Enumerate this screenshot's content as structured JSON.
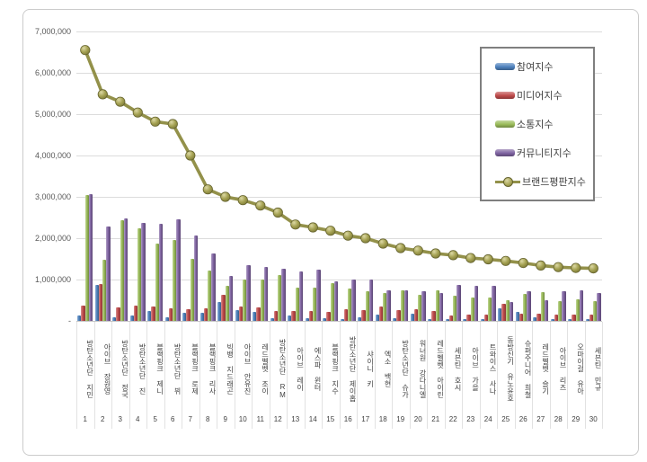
{
  "chart_data": {
    "type": "bar",
    "subtype": "grouped-bars-with-line-overlay",
    "title": "",
    "xlabel": "",
    "ylabel": "",
    "ylim": [
      0,
      7000000
    ],
    "ytick_interval": 1000000,
    "ytick_labels": [
      "-",
      "1,000,000",
      "2,000,000",
      "3,000,000",
      "4,000,000",
      "5,000,000",
      "6,000,000",
      "7,000,000"
    ],
    "grid": true,
    "legend_position": "inside-top-right",
    "categories": [
      "방탄소년단 지민",
      "아이브 장원영",
      "방탄소년단 정국",
      "방탄소년단 진",
      "블랙핑크 제니",
      "방탄소년단 뷔",
      "블랙핑크 로제",
      "블랙핑크 리사",
      "빅뱅 지드래곤",
      "아이브 안유진",
      "레드벨벳 조이",
      "방탄소년단 RM",
      "아이브 레이",
      "에스파 윈터",
      "블랙핑크 지수",
      "방탄소년단 제이홉",
      "샤이니 키",
      "엑소 백현",
      "방탄소년단 슈가",
      "워너원 강다니엘",
      "레드벨벳 아이린",
      "세븐틴 호시",
      "아이브 가을",
      "트와이스 사나",
      "동방신기 유노윤호",
      "슈퍼주니어 희철",
      "레드벨벳 슬기",
      "아이브 리즈",
      "오마이걸 유아",
      "세븐틴 민규"
    ],
    "rank_labels": [
      "1",
      "2",
      "3",
      "4",
      "5",
      "6",
      "7",
      "8",
      "9",
      "10",
      "11",
      "12",
      "13",
      "14",
      "15",
      "16",
      "17",
      "18",
      "19",
      "20",
      "21",
      "22",
      "23",
      "24",
      "25",
      "26",
      "27",
      "28",
      "29",
      "30"
    ],
    "series": [
      {
        "name": "참여지수",
        "type": "bar",
        "color": "#4e81bd",
        "values": [
          120000,
          870000,
          90000,
          120000,
          250000,
          80000,
          200000,
          190000,
          450000,
          270000,
          220000,
          70000,
          140000,
          70000,
          60000,
          50000,
          90000,
          160000,
          70000,
          180000,
          40000,
          40000,
          40000,
          50000,
          300000,
          210000,
          90000,
          40000,
          40000,
          40000
        ]
      },
      {
        "name": "미디어지수",
        "type": "bar",
        "color": "#bf4b4b",
        "values": [
          380000,
          890000,
          330000,
          370000,
          350000,
          310000,
          280000,
          300000,
          640000,
          350000,
          330000,
          230000,
          230000,
          230000,
          210000,
          280000,
          260000,
          340000,
          270000,
          290000,
          230000,
          120000,
          150000,
          160000,
          410000,
          170000,
          170000,
          150000,
          160000,
          150000
        ]
      },
      {
        "name": "소통지수",
        "type": "bar",
        "color": "#9abb59",
        "values": [
          3050000,
          1470000,
          2430000,
          2250000,
          1880000,
          1950000,
          1490000,
          1210000,
          840000,
          990000,
          1000000,
          1100000,
          810000,
          800000,
          920000,
          790000,
          710000,
          680000,
          740000,
          620000,
          750000,
          600000,
          570000,
          560000,
          490000,
          650000,
          700000,
          480000,
          520000,
          480000
        ]
      },
      {
        "name": "커뮤니티지수",
        "type": "bar",
        "color": "#7f63a1",
        "values": [
          3060000,
          2280000,
          2470000,
          2360000,
          2350000,
          2450000,
          2070000,
          1620000,
          1090000,
          1350000,
          1310000,
          1270000,
          1200000,
          1230000,
          950000,
          1010000,
          1000000,
          740000,
          750000,
          720000,
          680000,
          870000,
          850000,
          850000,
          460000,
          720000,
          490000,
          720000,
          730000,
          670000
        ]
      },
      {
        "name": "브랜드평판지수",
        "type": "line",
        "color": "#93914a",
        "marker_fill": "#a5a253",
        "marker_stroke": "#66642f",
        "values": [
          6550000,
          5480000,
          5300000,
          5040000,
          4820000,
          4760000,
          4000000,
          3180000,
          3000000,
          2920000,
          2790000,
          2620000,
          2330000,
          2260000,
          2180000,
          2060000,
          2000000,
          1870000,
          1760000,
          1700000,
          1630000,
          1590000,
          1520000,
          1490000,
          1450000,
          1400000,
          1340000,
          1300000,
          1280000,
          1270000
        ]
      }
    ]
  }
}
